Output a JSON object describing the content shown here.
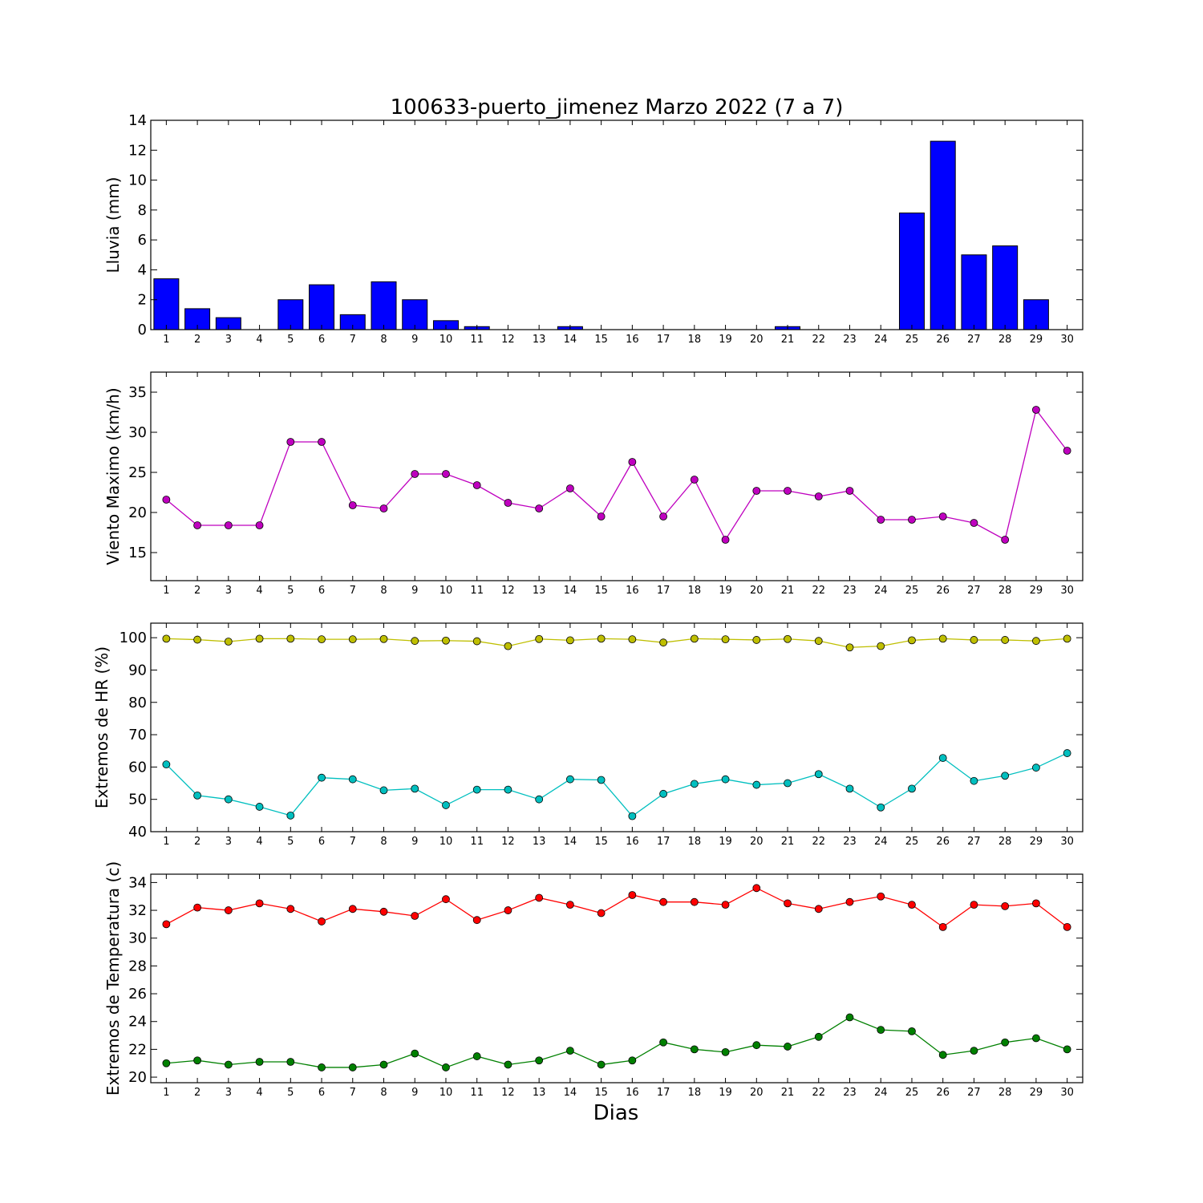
{
  "title": "100633-puerto_jimenez Marzo 2022  (7 a 7)",
  "xlabel": "Dias",
  "days": [
    1,
    2,
    3,
    4,
    5,
    6,
    7,
    8,
    9,
    10,
    11,
    12,
    13,
    14,
    15,
    16,
    17,
    18,
    19,
    20,
    21,
    22,
    23,
    24,
    25,
    26,
    27,
    28,
    29,
    30
  ],
  "chart_data": [
    {
      "type": "bar",
      "ylabel": "Lluvia (mm)",
      "ylim": [
        0,
        14
      ],
      "yticks": [
        0,
        2,
        4,
        6,
        8,
        10,
        12,
        14
      ],
      "x": [
        1,
        2,
        3,
        4,
        5,
        6,
        7,
        8,
        9,
        10,
        11,
        12,
        13,
        14,
        15,
        16,
        17,
        18,
        19,
        20,
        21,
        22,
        23,
        24,
        25,
        26,
        27,
        28,
        29,
        30
      ],
      "values": [
        3.4,
        1.4,
        0.8,
        0,
        2.0,
        3.0,
        1.0,
        3.2,
        2.0,
        0.6,
        0.2,
        0,
        0,
        0.2,
        0,
        0,
        0,
        0,
        0,
        0,
        0.2,
        0,
        0,
        0,
        7.8,
        12.6,
        5.0,
        5.6,
        2.0,
        0
      ],
      "color": "#0000ff"
    },
    {
      "type": "line",
      "ylabel": "Viento Maximo (km/h)",
      "ylim": [
        11.5,
        37.5
      ],
      "yticks": [
        15,
        20,
        25,
        30,
        35
      ],
      "x": [
        1,
        2,
        3,
        4,
        5,
        6,
        7,
        8,
        9,
        10,
        11,
        12,
        13,
        14,
        15,
        16,
        17,
        18,
        19,
        20,
        21,
        22,
        23,
        24,
        25,
        26,
        27,
        28,
        29,
        30
      ],
      "series": [
        {
          "values": [
            21.6,
            18.4,
            18.4,
            18.4,
            28.8,
            28.8,
            20.9,
            20.5,
            24.8,
            24.8,
            23.4,
            21.2,
            20.5,
            23.0,
            19.5,
            26.3,
            19.5,
            24.1,
            16.6,
            22.7,
            22.7,
            22.0,
            22.7,
            19.1,
            19.1,
            19.5,
            18.7,
            16.6,
            32.8,
            27.7
          ],
          "color": "#bf00bf"
        }
      ]
    },
    {
      "type": "line",
      "ylabel": "Extremos de HR (%)",
      "ylim": [
        40,
        104.5
      ],
      "yticks": [
        40,
        50,
        60,
        70,
        80,
        90,
        100
      ],
      "x": [
        1,
        2,
        3,
        4,
        5,
        6,
        7,
        8,
        9,
        10,
        11,
        12,
        13,
        14,
        15,
        16,
        17,
        18,
        19,
        20,
        21,
        22,
        23,
        24,
        25,
        26,
        27,
        28,
        29,
        30
      ],
      "series": [
        {
          "values": [
            99.7,
            99.4,
            98.8,
            99.7,
            99.7,
            99.5,
            99.5,
            99.6,
            99.0,
            99.1,
            98.9,
            97.4,
            99.6,
            99.2,
            99.7,
            99.5,
            98.5,
            99.7,
            99.5,
            99.3,
            99.6,
            99.0,
            97.0,
            97.4,
            99.2,
            99.7,
            99.3,
            99.3,
            99.0,
            99.7
          ],
          "color": "#bfbf00"
        },
        {
          "values": [
            60.8,
            51.2,
            50.0,
            47.7,
            45.0,
            56.7,
            56.2,
            52.8,
            53.3,
            48.2,
            53.0,
            53.0,
            50.0,
            56.2,
            56.0,
            44.8,
            51.7,
            54.8,
            56.2,
            54.5,
            55.0,
            57.8,
            53.3,
            47.5,
            53.3,
            62.8,
            55.7,
            57.3,
            59.8,
            64.3
          ],
          "color": "#00bfbf"
        }
      ]
    },
    {
      "type": "line",
      "ylabel": "Extremos de Temperatura (c)",
      "ylim": [
        19.6,
        34.6
      ],
      "yticks": [
        20,
        22,
        24,
        26,
        28,
        30,
        32,
        34
      ],
      "x": [
        1,
        2,
        3,
        4,
        5,
        6,
        7,
        8,
        9,
        10,
        11,
        12,
        13,
        14,
        15,
        16,
        17,
        18,
        19,
        20,
        21,
        22,
        23,
        24,
        25,
        26,
        27,
        28,
        29,
        30
      ],
      "series": [
        {
          "values": [
            31.0,
            32.2,
            32.0,
            32.5,
            32.1,
            31.2,
            32.1,
            31.9,
            31.6,
            32.8,
            31.3,
            32.0,
            32.9,
            32.4,
            31.8,
            33.1,
            32.6,
            32.6,
            32.4,
            33.6,
            32.5,
            32.1,
            32.6,
            33.0,
            32.4,
            30.8,
            32.4,
            32.3,
            32.5,
            30.8
          ],
          "color": "#ff0000"
        },
        {
          "values": [
            21.0,
            21.2,
            20.9,
            21.1,
            21.1,
            20.7,
            20.7,
            20.9,
            21.7,
            20.7,
            21.5,
            20.9,
            21.2,
            21.9,
            20.9,
            21.2,
            22.5,
            22.0,
            21.8,
            22.3,
            22.2,
            22.9,
            24.3,
            23.4,
            23.3,
            21.6,
            21.9,
            22.5,
            22.8,
            22.0
          ],
          "color": "#008000"
        }
      ]
    }
  ]
}
